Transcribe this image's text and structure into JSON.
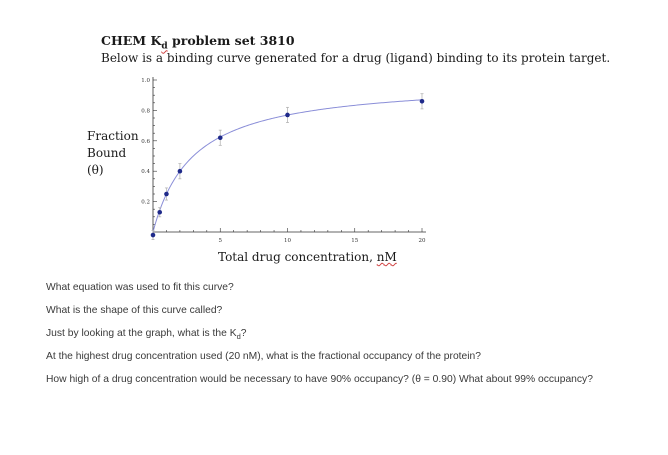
{
  "header": {
    "title_prefix": "CHEM K",
    "title_sub": "d",
    "title_suffix": " problem set 3810",
    "subtitle": "Below is a binding curve generated for a drug (ligand) binding to its protein target."
  },
  "chart_data": {
    "type": "scatter",
    "ylabel": [
      "Fraction",
      "Bound",
      "(θ)"
    ],
    "xlabel_prefix": "Total drug concentration, ",
    "xlabel_unit": "nM",
    "xlim": [
      0,
      20
    ],
    "ylim": [
      0,
      1.0
    ],
    "x_ticks": [
      5,
      10,
      15,
      20
    ],
    "y_ticks": [
      0.2,
      0.4,
      0.6,
      0.8,
      1.0
    ],
    "y_tick_labels": [
      "0.2",
      "0.4",
      "0.6",
      "0.8",
      "1.0"
    ],
    "series": [
      {
        "x": [
          0,
          0.5,
          1,
          2,
          5,
          10,
          20
        ],
        "y": [
          -0.02,
          0.13,
          0.25,
          0.4,
          0.62,
          0.77,
          0.86
        ],
        "error": [
          0.03,
          0.03,
          0.04,
          0.05,
          0.05,
          0.05,
          0.05
        ]
      }
    ],
    "fit": {
      "type": "hyperbolic",
      "Kd": 3.0,
      "Bmax": 1.0
    },
    "colors": {
      "points": "#1f2a8a",
      "fit": "#8a8ed8",
      "axis": "#333333",
      "errorbar": "#b5b5b5"
    }
  },
  "questions": {
    "q1": "What equation was used to fit this curve?",
    "q2": "What is the shape of this curve called?",
    "q3_prefix": "Just by looking at the graph, what is the K",
    "q3_sub": "d",
    "q3_suffix": "?",
    "q4": "At the highest drug concentration used (20 nM), what is the fractional occupancy of the protein?",
    "q5": "How high of a drug concentration would be necessary to have 90% occupancy? (θ = 0.90) What about 99% occupancy?"
  }
}
